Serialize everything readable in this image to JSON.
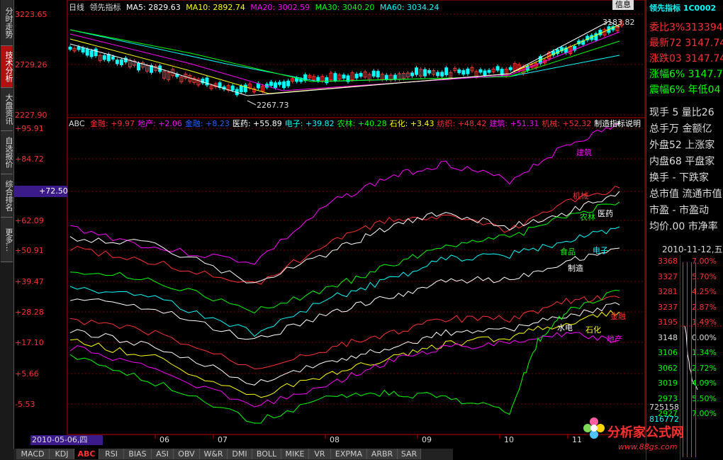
{
  "sidebar_tabs": [
    {
      "label": "分时走势",
      "active": false
    },
    {
      "label": "技术分析",
      "active": true
    },
    {
      "label": "大盘资讯",
      "active": false
    },
    {
      "label": "自选报价",
      "active": false
    },
    {
      "label": "综合排名",
      "active": false
    },
    {
      "label": "更多…",
      "active": false
    }
  ],
  "top_chart": {
    "period": "日线",
    "name": "领先指标",
    "ma5": "MA5: 2829.63",
    "ma10": "MA10: 2892.74",
    "ma20": "MA20: 3002.59",
    "ma30": "MA30: 3040.20",
    "ma60": "MA60: 3034.24",
    "info_btn": "信息",
    "high_label": "3183.82",
    "low_label": "2267.73",
    "yticks": [
      "3223.65",
      "2729.26",
      "2227.90"
    ],
    "colors": {
      "ma5": "#ffffff",
      "ma10": "#ffff00",
      "ma20": "#ff00ff",
      "ma30": "#00ff00",
      "ma60": "#00ffff",
      "up": "#ff3030",
      "down": "#00ffff"
    }
  },
  "abc_chart": {
    "indicator": "ABC",
    "legend": [
      {
        "text": "金融: +9.97",
        "color": "#ff3030"
      },
      {
        "text": "地产: +2.06",
        "color": "#ff00ff"
      },
      {
        "text": "金融: +8.23",
        "color": "#2060ff"
      },
      {
        "text": "医药: +55.89",
        "color": "#ffffff"
      },
      {
        "text": "电子: +39.82",
        "color": "#00ffff"
      },
      {
        "text": "农林: +40.28",
        "color": "#00ff00"
      },
      {
        "text": "石化: +3.43",
        "color": "#ffff00"
      },
      {
        "text": "纺织: +48.42",
        "color": "#ff3030"
      },
      {
        "text": "建筑: +51.31",
        "color": "#ff00ff"
      },
      {
        "text": "机械: +52.32",
        "color": "#ff3030"
      },
      {
        "text": "制造: +",
        "color": "#ffffff"
      }
    ],
    "indicator_help": "指标说明",
    "yticks": [
      "+95.91",
      "+84.72",
      "+72.50",
      "+62.09",
      "+50.91",
      "+39.47",
      "+28.28",
      "+17.10",
      "+5.66",
      "-5.53"
    ],
    "current_value": "+72.50",
    "series_labels": [
      "建筑",
      "机械",
      "医药",
      "农林",
      "食品",
      "电子",
      "制造",
      "水电",
      "石化",
      "金融",
      "地产"
    ],
    "series_colors": {
      "建筑": "#ff00ff",
      "机械": "#ff3030",
      "医药": "#ffffff",
      "农林": "#00ff00",
      "食品": "#00ff00",
      "电子": "#00ffff",
      "制造": "#ffffff",
      "水电": "#ffffff",
      "石化": "#ffff00",
      "金融": "#ff3030",
      "地产": "#ff00ff"
    }
  },
  "x_axis": {
    "date": "2010-05-06,四",
    "months": [
      "05",
      "06",
      "07",
      "08",
      "09",
      "10",
      "11"
    ]
  },
  "bottom_tabs": [
    "MACD",
    "KDJ",
    "ABC",
    "RSI",
    "BIAS",
    "ASI",
    "OBV",
    "W&R",
    "DMI",
    "BOLL",
    "MIKE",
    "VR",
    "EXPMA",
    "ARBR",
    "SAR"
  ],
  "active_bottom_tab": "ABC",
  "right_panel": {
    "title": "领先指标 1C0002",
    "rows_overlay": [
      "委比3%313394",
      "最新72 3147.74",
      "涨跌03 3147.74",
      "涨幅6% 3147.74",
      "震幅6% 年低04"
    ],
    "rows": [
      "现手 5 量比26",
      "总手万 金额亿",
      "外盘52 上涨家",
      "内盘68 平盘家",
      "换手 - 下跌家",
      "总市值 流通市值",
      "市盈 - 市盈动",
      "均价.00 市净率"
    ],
    "date": "2010-11-12,五",
    "price_levels": [
      "3368",
      "3327",
      "3281",
      "3237",
      "3195",
      "3148",
      "3106",
      "3062",
      "3019",
      "2973",
      "2927"
    ],
    "pct_levels": [
      "7.00%",
      "5.70%",
      "4.25%",
      "2.87%",
      "1.49%",
      "0.00%",
      "1.34%",
      "2.72%",
      "4.09%",
      "5.50%",
      "7.00%"
    ],
    "volume1": "725158",
    "volume2": "816772"
  },
  "watermark": {
    "text": "分析家公式网",
    "url": "www.88gs.com"
  }
}
